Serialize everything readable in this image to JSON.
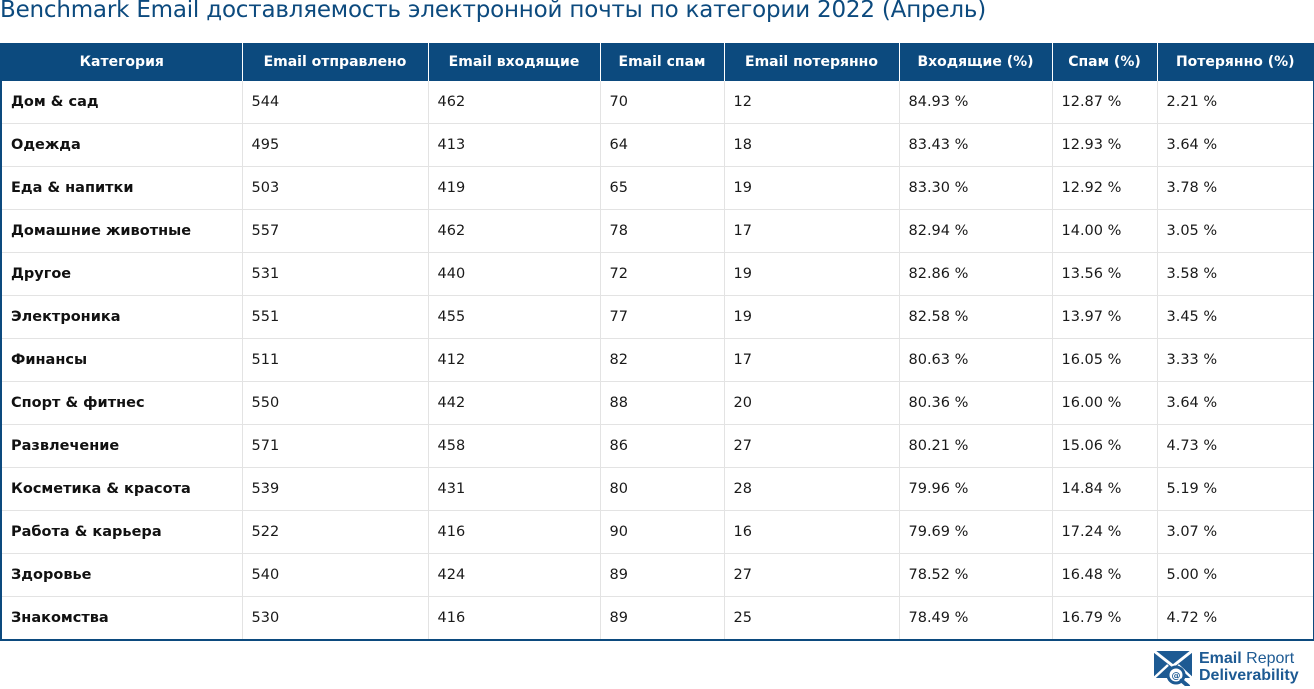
{
  "title": "Benchmark Email доставляемость электронной почты по категории 2022 (Апрель)",
  "table": {
    "headers": [
      "Категория",
      "Email отправлено",
      "Email входящие",
      "Email спам",
      "Email потерянно",
      "Входящие (%)",
      "Спам (%)",
      "Потерянно (%)"
    ],
    "rows": [
      [
        "Дом & сад",
        "544",
        "462",
        "70",
        "12",
        "84.93 %",
        "12.87 %",
        "2.21 %"
      ],
      [
        "Одежда",
        "495",
        "413",
        "64",
        "18",
        "83.43 %",
        "12.93 %",
        "3.64 %"
      ],
      [
        "Еда & напитки",
        "503",
        "419",
        "65",
        "19",
        "83.30 %",
        "12.92 %",
        "3.78 %"
      ],
      [
        "Домашние животные",
        "557",
        "462",
        "78",
        "17",
        "82.94 %",
        "14.00 %",
        "3.05 %"
      ],
      [
        "Другое",
        "531",
        "440",
        "72",
        "19",
        "82.86 %",
        "13.56 %",
        "3.58 %"
      ],
      [
        "Электроника",
        "551",
        "455",
        "77",
        "19",
        "82.58 %",
        "13.97 %",
        "3.45 %"
      ],
      [
        "Финансы",
        "511",
        "412",
        "82",
        "17",
        "80.63 %",
        "16.05 %",
        "3.33 %"
      ],
      [
        "Спорт & фитнес",
        "550",
        "442",
        "88",
        "20",
        "80.36 %",
        "16.00 %",
        "3.64 %"
      ],
      [
        "Развлечение",
        "571",
        "458",
        "86",
        "27",
        "80.21 %",
        "15.06 %",
        "4.73 %"
      ],
      [
        "Косметика & красота",
        "539",
        "431",
        "80",
        "28",
        "79.96 %",
        "14.84 %",
        "5.19 %"
      ],
      [
        "Работа & карьера",
        "522",
        "416",
        "90",
        "16",
        "79.69 %",
        "17.24 %",
        "3.07 %"
      ],
      [
        "Здоровье",
        "540",
        "424",
        "89",
        "27",
        "78.52 %",
        "16.48 %",
        "5.00 %"
      ],
      [
        "Знакомства",
        "530",
        "416",
        "89",
        "25",
        "78.49 %",
        "16.79 %",
        "4.72 %"
      ]
    ]
  },
  "logo": {
    "line1_bold": "Email",
    "line1_rest": " Report",
    "line2": "Deliverability",
    "icon": "envelope-magnifier-icon"
  },
  "colors": {
    "brand": "#0c4a7e",
    "header_text": "#ffffff",
    "grid_line": "#e3e3e3"
  }
}
